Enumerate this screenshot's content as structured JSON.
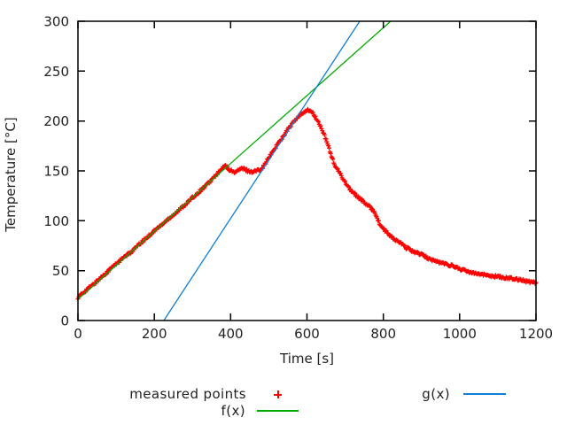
{
  "axes": {
    "xlabel": "Time [s]",
    "ylabel": "Temperature [°C]",
    "x_ticks": [
      0,
      200,
      400,
      600,
      800,
      1000,
      1200
    ],
    "y_ticks": [
      0,
      50,
      100,
      150,
      200,
      250,
      300
    ],
    "xlim": [
      0,
      1200
    ],
    "ylim": [
      0,
      300
    ]
  },
  "colors": {
    "measured": "#ff0000",
    "f_line": "#00ab00",
    "g_line": "#0e7ed8",
    "axis": "#000000",
    "text": "#222222",
    "background": "#ffffff"
  },
  "legend": {
    "position": "below",
    "entries": [
      {
        "label": "measured points",
        "sample": "plus-marker",
        "color": "#ff0000"
      },
      {
        "label": "f(x)",
        "sample": "line",
        "color": "#00ab00"
      },
      {
        "label": "g(x)",
        "sample": "line",
        "color": "#0e7ed8"
      }
    ]
  },
  "chart_data": {
    "type": "scatter",
    "title": "",
    "xlabel": "Time [s]",
    "ylabel": "Temperature [°C]",
    "xlim": [
      0,
      1200
    ],
    "ylim": [
      0,
      300
    ],
    "x_ticks": [
      0,
      200,
      400,
      600,
      800,
      1000,
      1200
    ],
    "y_ticks": [
      0,
      50,
      100,
      150,
      200,
      250,
      300
    ],
    "grid": false,
    "legend_position": "below",
    "series": [
      {
        "name": "measured points",
        "type": "scatter",
        "marker": "+",
        "color": "#ff0000",
        "sample_step_s": 2,
        "noise_amp_c": 1.3,
        "keypoints": [
          [
            0,
            23
          ],
          [
            20,
            30
          ],
          [
            40,
            36
          ],
          [
            60,
            43
          ],
          [
            80,
            50
          ],
          [
            100,
            57
          ],
          [
            120,
            63
          ],
          [
            140,
            69
          ],
          [
            160,
            76
          ],
          [
            180,
            83
          ],
          [
            200,
            90
          ],
          [
            220,
            96
          ],
          [
            240,
            103
          ],
          [
            260,
            109
          ],
          [
            280,
            116
          ],
          [
            300,
            123
          ],
          [
            320,
            130
          ],
          [
            340,
            137
          ],
          [
            360,
            145
          ],
          [
            375,
            151
          ],
          [
            385,
            155
          ],
          [
            395,
            152
          ],
          [
            405,
            149
          ],
          [
            415,
            149
          ],
          [
            425,
            152
          ],
          [
            435,
            152
          ],
          [
            445,
            150
          ],
          [
            455,
            149
          ],
          [
            465,
            150
          ],
          [
            475,
            151
          ],
          [
            485,
            154
          ],
          [
            495,
            160
          ],
          [
            505,
            166
          ],
          [
            515,
            172
          ],
          [
            525,
            178
          ],
          [
            535,
            183
          ],
          [
            545,
            189
          ],
          [
            555,
            194
          ],
          [
            565,
            199
          ],
          [
            575,
            203
          ],
          [
            585,
            207
          ],
          [
            595,
            210
          ],
          [
            605,
            211
          ],
          [
            615,
            208
          ],
          [
            625,
            202
          ],
          [
            635,
            195
          ],
          [
            645,
            186
          ],
          [
            655,
            176
          ],
          [
            665,
            164
          ],
          [
            672,
            156
          ],
          [
            680,
            151
          ],
          [
            690,
            145
          ],
          [
            700,
            139
          ],
          [
            712,
            132
          ],
          [
            724,
            127
          ],
          [
            736,
            123
          ],
          [
            748,
            119
          ],
          [
            760,
            115
          ],
          [
            770,
            112
          ],
          [
            778,
            108
          ],
          [
            784,
            103
          ],
          [
            790,
            97
          ],
          [
            800,
            92
          ],
          [
            810,
            88
          ],
          [
            820,
            84
          ],
          [
            830,
            81
          ],
          [
            840,
            79
          ],
          [
            860,
            73
          ],
          [
            880,
            69
          ],
          [
            900,
            66
          ],
          [
            920,
            62
          ],
          [
            940,
            59
          ],
          [
            960,
            57
          ],
          [
            980,
            55
          ],
          [
            1000,
            52
          ],
          [
            1020,
            49
          ],
          [
            1040,
            48
          ],
          [
            1060,
            46
          ],
          [
            1080,
            45
          ],
          [
            1100,
            44
          ],
          [
            1120,
            43
          ],
          [
            1140,
            42
          ],
          [
            1160,
            41
          ],
          [
            1180,
            39
          ],
          [
            1200,
            38
          ]
        ]
      },
      {
        "name": "f(x)",
        "type": "line",
        "color": "#00ab00",
        "points": [
          [
            0,
            21.5
          ],
          [
            819,
            300
          ]
        ]
      },
      {
        "name": "g(x)",
        "type": "line",
        "color": "#0e7ed8",
        "points": [
          [
            225,
            0
          ],
          [
            738,
            300
          ]
        ]
      }
    ]
  }
}
